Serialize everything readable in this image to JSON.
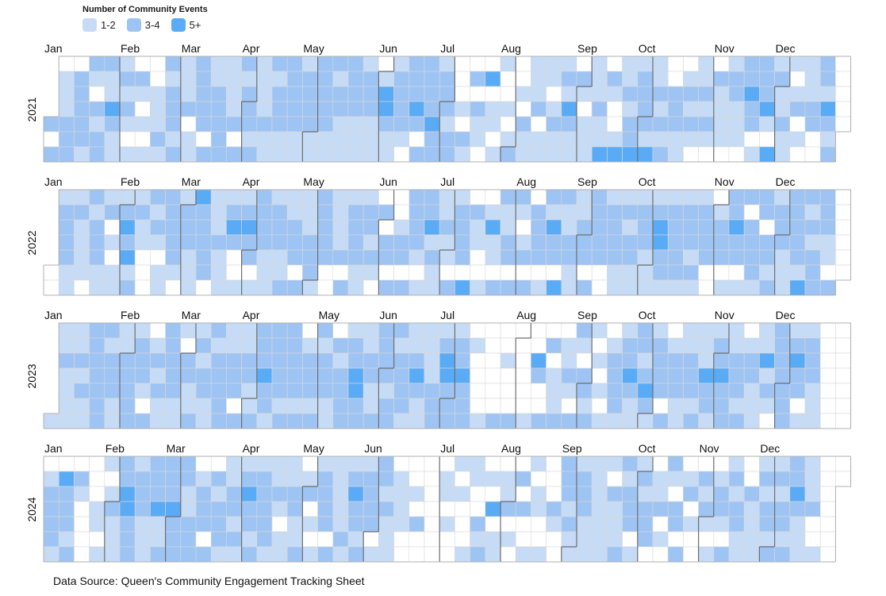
{
  "legend": {
    "title": "Number of Community Events",
    "items": [
      {
        "label": "1-2",
        "color": "#c6dbf5"
      },
      {
        "label": "3-4",
        "color": "#9ec4f4"
      },
      {
        "label": "5+",
        "color": "#5aabf6"
      }
    ]
  },
  "source_text": "Data Source: Queen's Community Engagement Tracking Sheet",
  "chart_data": {
    "type": "heatmap",
    "subtype": "calendar",
    "title": "",
    "legend_title": "Number of Community Events",
    "legend_placement": "top-left",
    "levels": [
      {
        "value": 0,
        "label": "",
        "color": "#ffffff"
      },
      {
        "value": 1,
        "label": "1-2",
        "color": "#c6dbf5"
      },
      {
        "value": 2,
        "label": "3-4",
        "color": "#9ec4f4"
      },
      {
        "value": 3,
        "label": "5+",
        "color": "#5aabf6"
      }
    ],
    "months": [
      "Jan",
      "Feb",
      "Mar",
      "Apr",
      "May",
      "Jun",
      "Jul",
      "Aug",
      "Sep",
      "Oct",
      "Nov",
      "Dec"
    ],
    "week_start": "Monday",
    "years": [
      {
        "year": 2021,
        "weeks": [
          "0003202",
          "0111222",
          "0222221",
          "2102122",
          "2113211",
          "1212101",
          "0210101",
          "0011121",
          "2122212",
          "1112011",
          "2222202",
          "1122222",
          "1111202",
          "2122212",
          "1111211",
          "2122211",
          "2222211",
          "1222211",
          "2222211",
          "2122111",
          "2222111",
          "1222111",
          "0133211",
          "1222210",
          "2223202",
          "2222322",
          "1222122",
          "0001021",
          "0202110",
          "0301101",
          "1001012",
          "0010211",
          "1112011",
          "1101211",
          "1213211",
          "0210111",
          "1112113",
          "0210013",
          "1121223",
          "1222213",
          "1121212",
          "0022211",
          "0121210",
          "1121210",
          "0211110",
          "1221110",
          "2232201",
          "2223103",
          "1211211",
          "1012010",
          "1112200",
          "2213212"
        ]
      },
      {
        "year": 2022,
        "weeks": [
          "0211200",
          "1222211",
          "1211110",
          "2122211",
          "1201011",
          "1232312",
          "1211000",
          "2121011",
          "2222210",
          "1222111",
          "3222220",
          "1112111",
          "1232001",
          "1232201",
          "2222111",
          "1222112",
          "1122202",
          "1112221",
          "2222200",
          "1111202",
          "1222211",
          "1221210",
          "0202202",
          "0012202",
          "2222101",
          "2231211",
          "1121102",
          "1222203",
          "0211001",
          "0131102",
          "2112202",
          "2101202",
          "0222201",
          "2132203",
          "2112211",
          "1122202",
          "2222200",
          "1222211",
          "1212211",
          "1222111",
          "1233221",
          "1222221",
          "1222121",
          "1222200",
          "0122201",
          "2232201",
          "2022221",
          "2202212",
          "1222111",
          "2222213",
          "2121222",
          "2221102"
        ]
      },
      {
        "year": 2023,
        "weeks": [
          "0111111",
          "1121111",
          "1121211",
          "2222222",
          "2122211",
          "1122222",
          "1222102",
          "0121211",
          "2222211",
          "1022112",
          "1212211",
          "2122222",
          "1122202",
          "1122112",
          "2223221",
          "2222212",
          "2222212",
          "0122212",
          "2122211",
          "0212222",
          "1223322",
          "1122112",
          "2222122",
          "2122221",
          "1123211",
          "1111222",
          "1233222",
          "1223222",
          "0100001",
          "0000002",
          "0010002",
          "0000001",
          "0032002",
          "0201112",
          "0112102",
          "2102212",
          "1010101",
          "0122221",
          "1223211",
          "2212321",
          "1222202",
          "0122211",
          "1122212",
          "1113221",
          "1223222",
          "1122212",
          "0122111",
          "1131210",
          "2222222",
          "1232201",
          "1222111",
          "0000000"
        ]
      },
      {
        "year": 2024,
        "weeks": [
          "0122221",
          "0322212",
          "0210000",
          "0001101",
          "1012111",
          "2233222",
          "1222111",
          "2223112",
          "2223222",
          "2211222",
          "0122202",
          "0212221",
          "1122121",
          "1232212",
          "1222221",
          "1121011",
          "1122112",
          "0120101",
          "1222202",
          "1111121",
          "1232212",
          "1222201",
          "2212111",
          "0111100",
          "0010200",
          "0000000",
          "0110100",
          "1010001",
          "1100212",
          "0103011",
          "0112010",
          "0202001",
          "1011001",
          "0002100",
          "2221211",
          "1222111",
          "1111111",
          "1021112",
          "2122201",
          "1212220",
          "0112010",
          "2102202",
          "0120100",
          "0212101",
          "0122102",
          "1212211",
          "0021111",
          "1212212",
          "1212212",
          "2232111",
          "1112001",
          "0000000"
        ]
      }
    ]
  }
}
